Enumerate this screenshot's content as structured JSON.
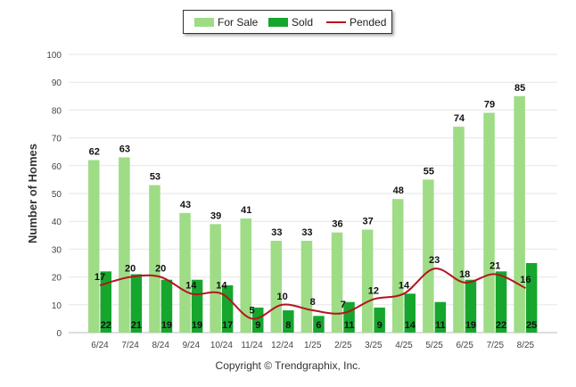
{
  "legend": {
    "for_sale": "For Sale",
    "sold": "Sold",
    "pended": "Pended"
  },
  "footer": "Copyright © Trendgraphix, Inc.",
  "colors": {
    "for_sale": "#9edc86",
    "sold": "#16a62d",
    "pended": "#b5141e",
    "grid": "#e6e6e6"
  },
  "chart_data": {
    "type": "bar",
    "title": "",
    "xlabel": "",
    "ylabel": "Number of Homes",
    "ylim": [
      0,
      100
    ],
    "yticks": [
      0,
      10,
      20,
      30,
      40,
      50,
      60,
      70,
      80,
      90,
      100
    ],
    "grid": true,
    "legend_position": "top-center",
    "categories": [
      "6/24",
      "7/24",
      "8/24",
      "9/24",
      "10/24",
      "11/24",
      "12/24",
      "1/25",
      "2/25",
      "3/25",
      "4/25",
      "5/25",
      "6/25",
      "7/25",
      "8/25"
    ],
    "series": [
      {
        "name": "For Sale",
        "kind": "bar",
        "values": [
          62,
          63,
          53,
          43,
          39,
          41,
          33,
          33,
          36,
          37,
          48,
          55,
          74,
          79,
          85
        ]
      },
      {
        "name": "Sold",
        "kind": "bar",
        "values": [
          22,
          21,
          19,
          19,
          17,
          9,
          8,
          6,
          11,
          9,
          14,
          11,
          19,
          22,
          25
        ]
      },
      {
        "name": "Pended",
        "kind": "line",
        "values": [
          17,
          20,
          20,
          14,
          14,
          5,
          10,
          8,
          7,
          12,
          14,
          23,
          18,
          21,
          16
        ]
      }
    ]
  }
}
